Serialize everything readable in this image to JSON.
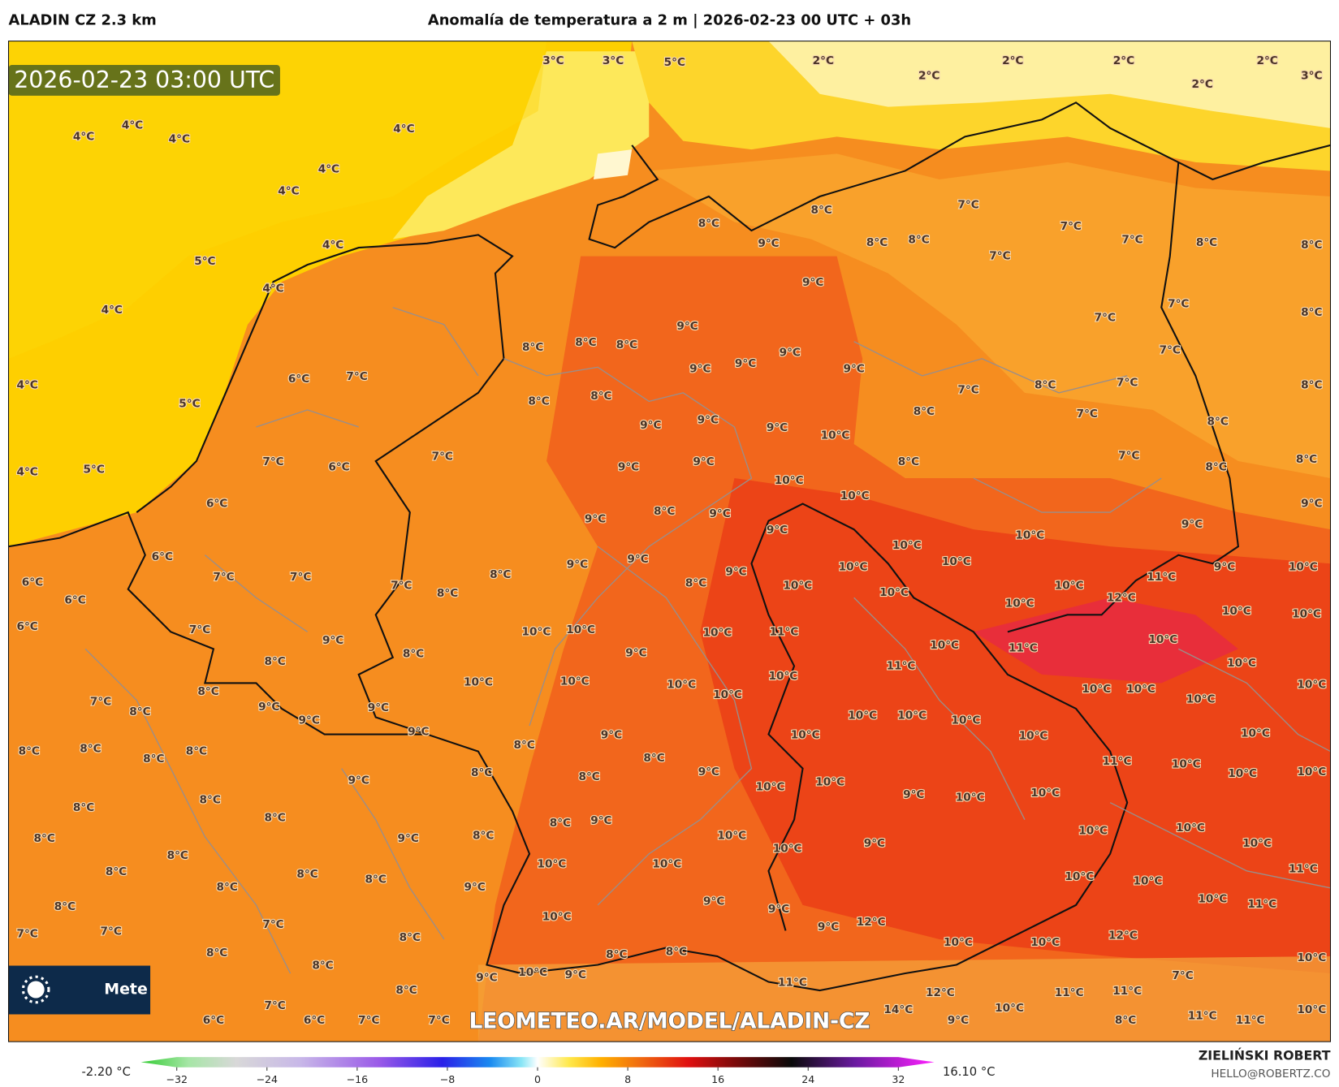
{
  "header": {
    "model": "ALADIN CZ 2.3 km",
    "title": "Anomalía de temperatura a 2 m | 2026-02-23 00 UTC + 03h"
  },
  "map": {
    "timestamp": "2026-02-23 03:00 UTC",
    "watermark": "LEOMETEO.AR/MODEL/ALADIN-CZ",
    "logo_text": "Mete",
    "labels": [
      "4°C",
      "4°C",
      "4°C",
      "4°C",
      "4°C",
      "4°C",
      "5°C",
      "4°C",
      "4°C",
      "4°C",
      "4°C",
      "5°C",
      "4°C",
      "5°C",
      "6°C",
      "7°C",
      "7°C",
      "6°C",
      "7°C",
      "6°C",
      "6°C",
      "6°C",
      "6°C",
      "7°C",
      "7°C",
      "6°C",
      "7°C",
      "3°C",
      "3°C",
      "5°C",
      "2°C",
      "2°C",
      "2°C",
      "2°C",
      "2°C",
      "2°C",
      "3°C",
      "8°C",
      "8°C",
      "9°C",
      "8°C",
      "8°C",
      "7°C",
      "7°C",
      "7°C",
      "7°C",
      "8°C",
      "8°C",
      "9°C",
      "9°C",
      "8°C",
      "8°C",
      "8°C",
      "9°C",
      "9°C",
      "9°C",
      "9°C",
      "7°C",
      "7°C",
      "7°C",
      "8°C",
      "8°C",
      "7°C",
      "7°C",
      "8°C",
      "8°C",
      "8°C",
      "9°C",
      "9°C",
      "9°C",
      "10°C",
      "8°C",
      "7°C",
      "8°C",
      "9°C",
      "9°C",
      "10°C",
      "10°C",
      "8°C",
      "7°C",
      "8°C",
      "8°C",
      "9°C",
      "8°C",
      "9°C",
      "9°C",
      "9°C",
      "10°C",
      "9°C",
      "10°C",
      "10°C",
      "10°C",
      "9°C",
      "10°C",
      "10°C",
      "10°C",
      "11°C",
      "12°C",
      "9°C",
      "10°C",
      "10°C",
      "10°C",
      "10°C",
      "7°C",
      "8°C",
      "8°C",
      "9°C",
      "9°C",
      "8°C",
      "10°C",
      "10°C",
      "10°C",
      "11°C",
      "10°C",
      "11°C",
      "10°C",
      "10°C",
      "10°C",
      "9°C",
      "8°C",
      "9°C",
      "11°C",
      "10°C",
      "10°C",
      "10°C",
      "10°C",
      "10°C",
      "10°C",
      "10°C",
      "10°C",
      "7°C",
      "8°C",
      "8°C",
      "8°C",
      "9°C",
      "9°C",
      "9°C",
      "9°C",
      "9°C",
      "10°C",
      "10°C",
      "10°C",
      "10°C",
      "10°C",
      "10°C",
      "8°C",
      "8°C",
      "8°C",
      "8°C",
      "8°C",
      "8°C",
      "11°C",
      "10°C",
      "10°C",
      "10°C",
      "9°C",
      "8°C",
      "8°C",
      "9°C",
      "10°C",
      "10°C",
      "9°C",
      "10°C",
      "10°C",
      "8°C",
      "8°C",
      "8°C",
      "8°C",
      "9°C",
      "8°C",
      "8°C",
      "9°C",
      "10°C",
      "10°C",
      "9°C",
      "10°C",
      "10°C",
      "10°C",
      "8°C",
      "8°C",
      "8°C",
      "8°C",
      "10°C",
      "10°C",
      "10°C",
      "10°C",
      "11°C",
      "8°C",
      "8°C",
      "9°C",
      "9°C",
      "9°C",
      "10°C",
      "11°C",
      "7°C",
      "7°C",
      "7°C",
      "8°C",
      "8°C",
      "10°C",
      "9°C",
      "12°C",
      "12°C",
      "10°C",
      "10°C",
      "10°C",
      "8°C",
      "8°C",
      "8°C",
      "9°C",
      "10°C",
      "9°C",
      "11°C",
      "7°C",
      "11°C",
      "11°C",
      "12°C",
      "8°C",
      "10°C",
      "7°C",
      "14°C",
      "10°C",
      "11°C",
      "11°C",
      "9°C",
      "8°C",
      "6°C",
      "6°C",
      "7°C",
      "7°C"
    ]
  },
  "colorbar": {
    "min_label": "-2.20 °C",
    "max_label": "16.10 °C",
    "ticks": [
      {
        "value": -32,
        "label": "−32"
      },
      {
        "value": -24,
        "label": "−24"
      },
      {
        "value": -16,
        "label": "−16"
      },
      {
        "value": -8,
        "label": "−8"
      },
      0,
      8,
      16,
      24,
      32
    ]
  },
  "footer": {
    "author": "ZIELIŃSKI ROBERT",
    "email": "HELLO@ROBERTZ.CO"
  }
}
